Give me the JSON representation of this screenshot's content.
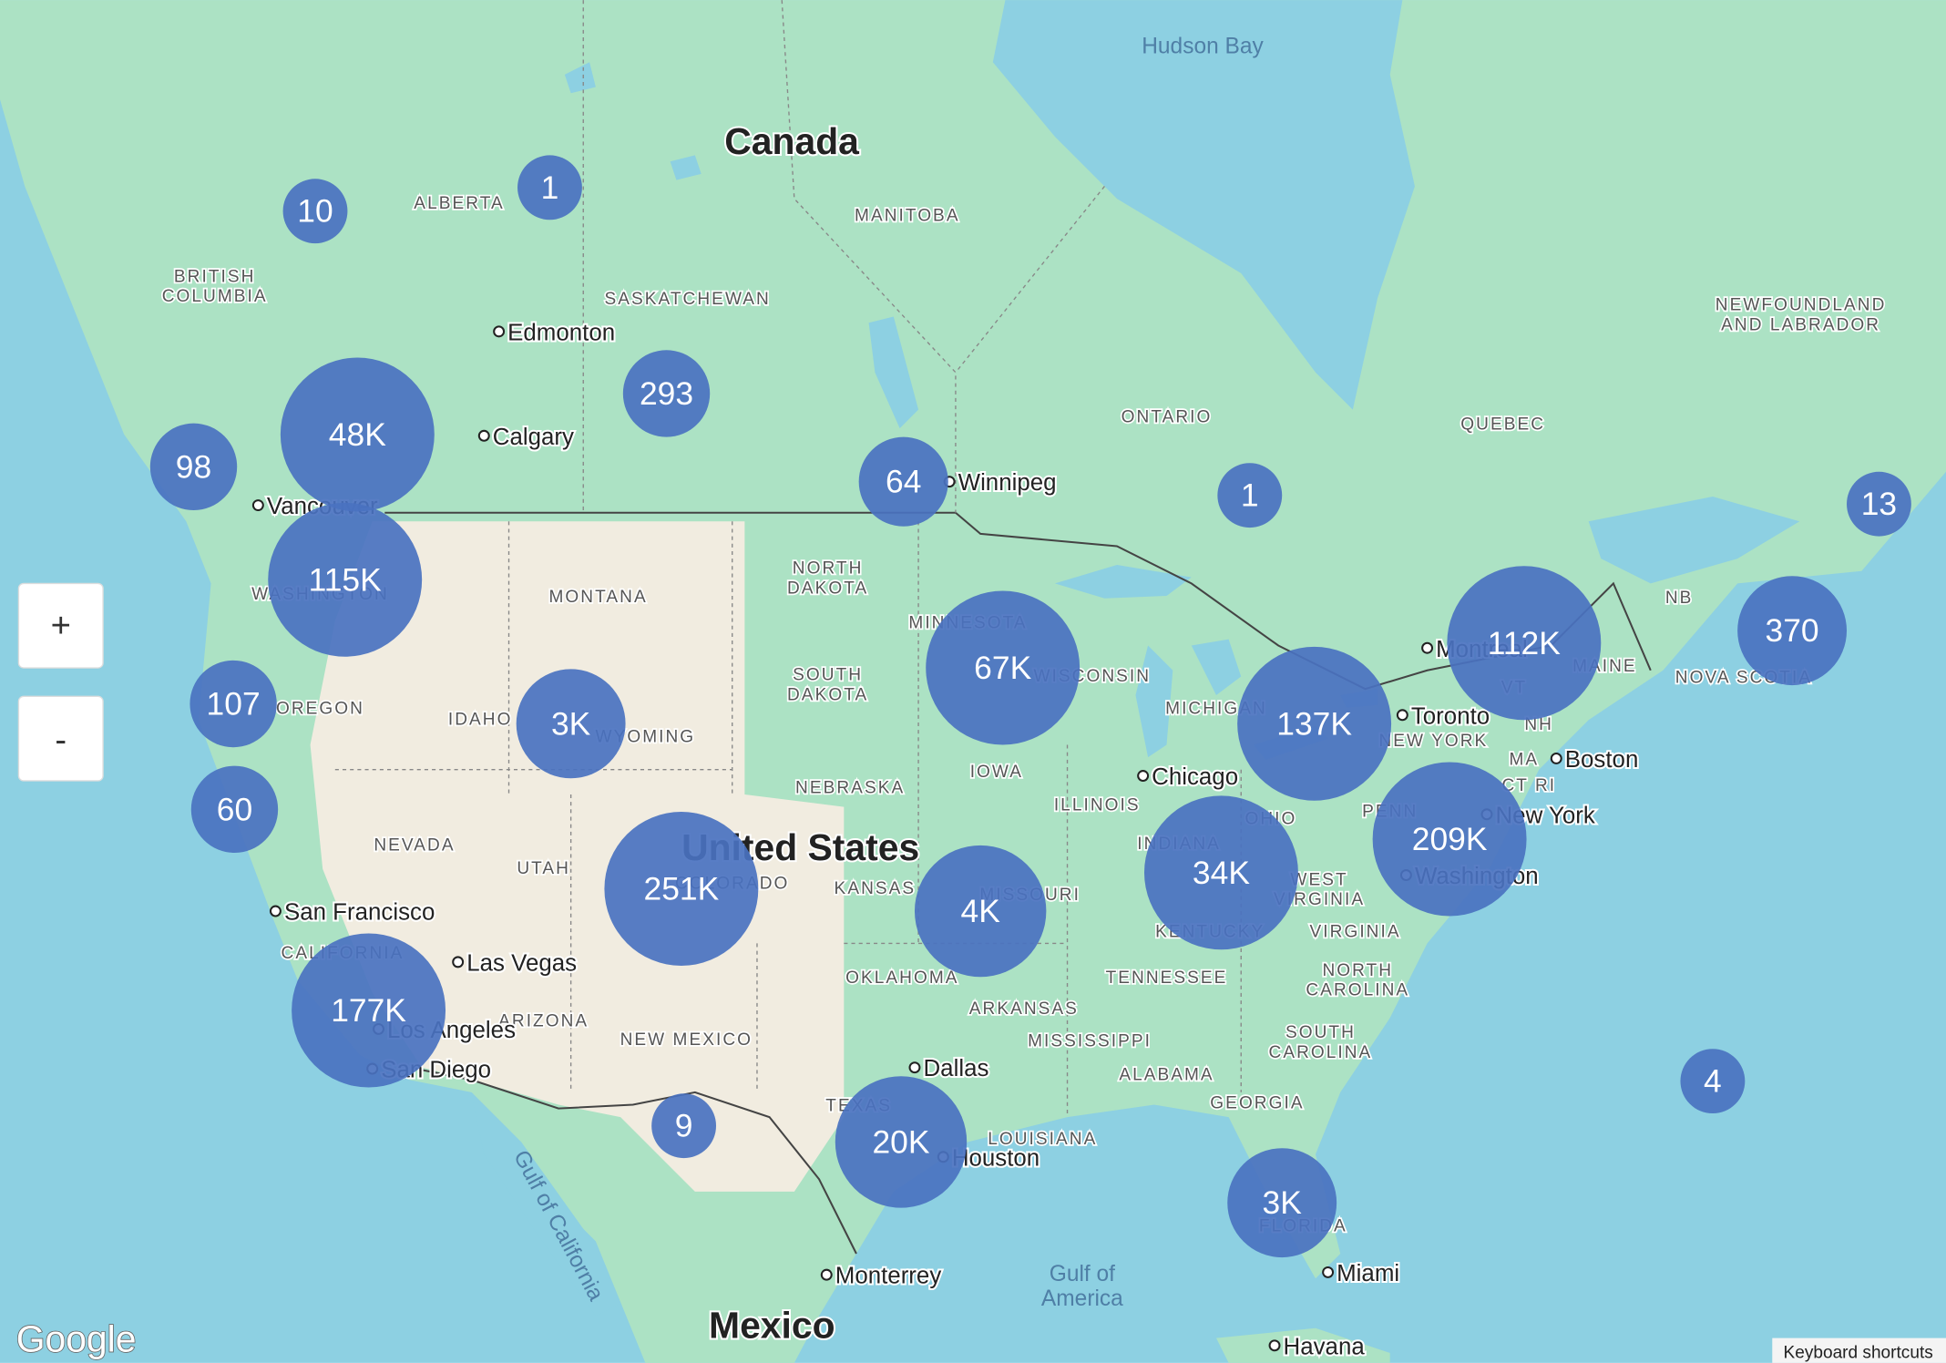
{
  "map": {
    "countries": [
      "Canada",
      "United States",
      "Mexico"
    ],
    "regions": [
      [
        "ALBERTA"
      ],
      [
        "BRITISH",
        "COLUMBIA"
      ],
      [
        "MANITOBA"
      ],
      [
        "SASKATCHEWAN"
      ],
      [
        "ONTARIO"
      ],
      [
        "QUEBEC"
      ],
      [
        "NEWFOUNDLAND",
        "AND LABRADOR"
      ],
      [
        "NB"
      ],
      [
        "NOVA SCOTIA"
      ],
      [
        "MAINE"
      ],
      [
        "MONTANA"
      ],
      [
        "NORTH",
        "DAKOTA"
      ],
      [
        "SOUTH",
        "DAKOTA"
      ],
      [
        "MINNESOTA"
      ],
      [
        "WISCONSIN"
      ],
      [
        "MICHIGAN"
      ],
      [
        "IOWA"
      ],
      [
        "NEBRASKA"
      ],
      [
        "ILLINOIS"
      ],
      [
        "INDIANA"
      ],
      [
        "OHIO"
      ],
      [
        "NEW YORK"
      ],
      [
        "VT"
      ],
      [
        "NH"
      ],
      [
        "MA"
      ],
      [
        "CT RI"
      ],
      [
        "PENN"
      ],
      [
        "WASHINGTON"
      ],
      [
        "OREGON"
      ],
      [
        "IDAHO"
      ],
      [
        "WYOMING"
      ],
      [
        "NEVADA"
      ],
      [
        "UTAH"
      ],
      [
        "COLORADO"
      ],
      [
        "KANSAS"
      ],
      [
        "MISSOURI"
      ],
      [
        "WEST",
        "VIRGINIA"
      ],
      [
        "VIRGINIA"
      ],
      [
        "KENTUCKY"
      ],
      [
        "TENNESSEE"
      ],
      [
        "OKLAHOMA"
      ],
      [
        "ARKANSAS"
      ],
      [
        "NORTH",
        "CAROLINA"
      ],
      [
        "SOUTH",
        "CAROLINA"
      ],
      [
        "CALIFORNIA"
      ],
      [
        "ARIZONA"
      ],
      [
        "NEW MEXICO"
      ],
      [
        "MISSISSIPPI"
      ],
      [
        "ALABAMA"
      ],
      [
        "GEORGIA"
      ],
      [
        "LOUISIANA"
      ],
      [
        "TEXAS"
      ],
      [
        "FLORIDA"
      ]
    ],
    "cities": [
      "Edmonton",
      "Calgary",
      "Vancouver",
      "Winnipeg",
      "Montreal",
      "Toronto",
      "Chicago",
      "Boston",
      "New York",
      "Washington",
      "San Francisco",
      "Las Vegas",
      "Los Angeles",
      "San Diego",
      "Dallas",
      "Houston",
      "Monterrey",
      "Miami",
      "Havana"
    ],
    "water": [
      [
        "Hudson Bay"
      ],
      [
        "Gulf of California"
      ],
      [
        "Gulf of",
        "America"
      ]
    ]
  },
  "clusters": [
    "10",
    "1",
    "293",
    "48K",
    "98",
    "115K",
    "64",
    "1",
    "13",
    "370",
    "112K",
    "67K",
    "137K",
    "107",
    "3K",
    "60",
    "209K",
    "251K",
    "34K",
    "4K",
    "177K",
    "20K",
    "9",
    "3K",
    "4"
  ],
  "controls": {
    "zoom_in": "+",
    "zoom_out": "-"
  },
  "attribution": {
    "logo": "Google",
    "shortcuts": "Keyboard shortcuts"
  }
}
